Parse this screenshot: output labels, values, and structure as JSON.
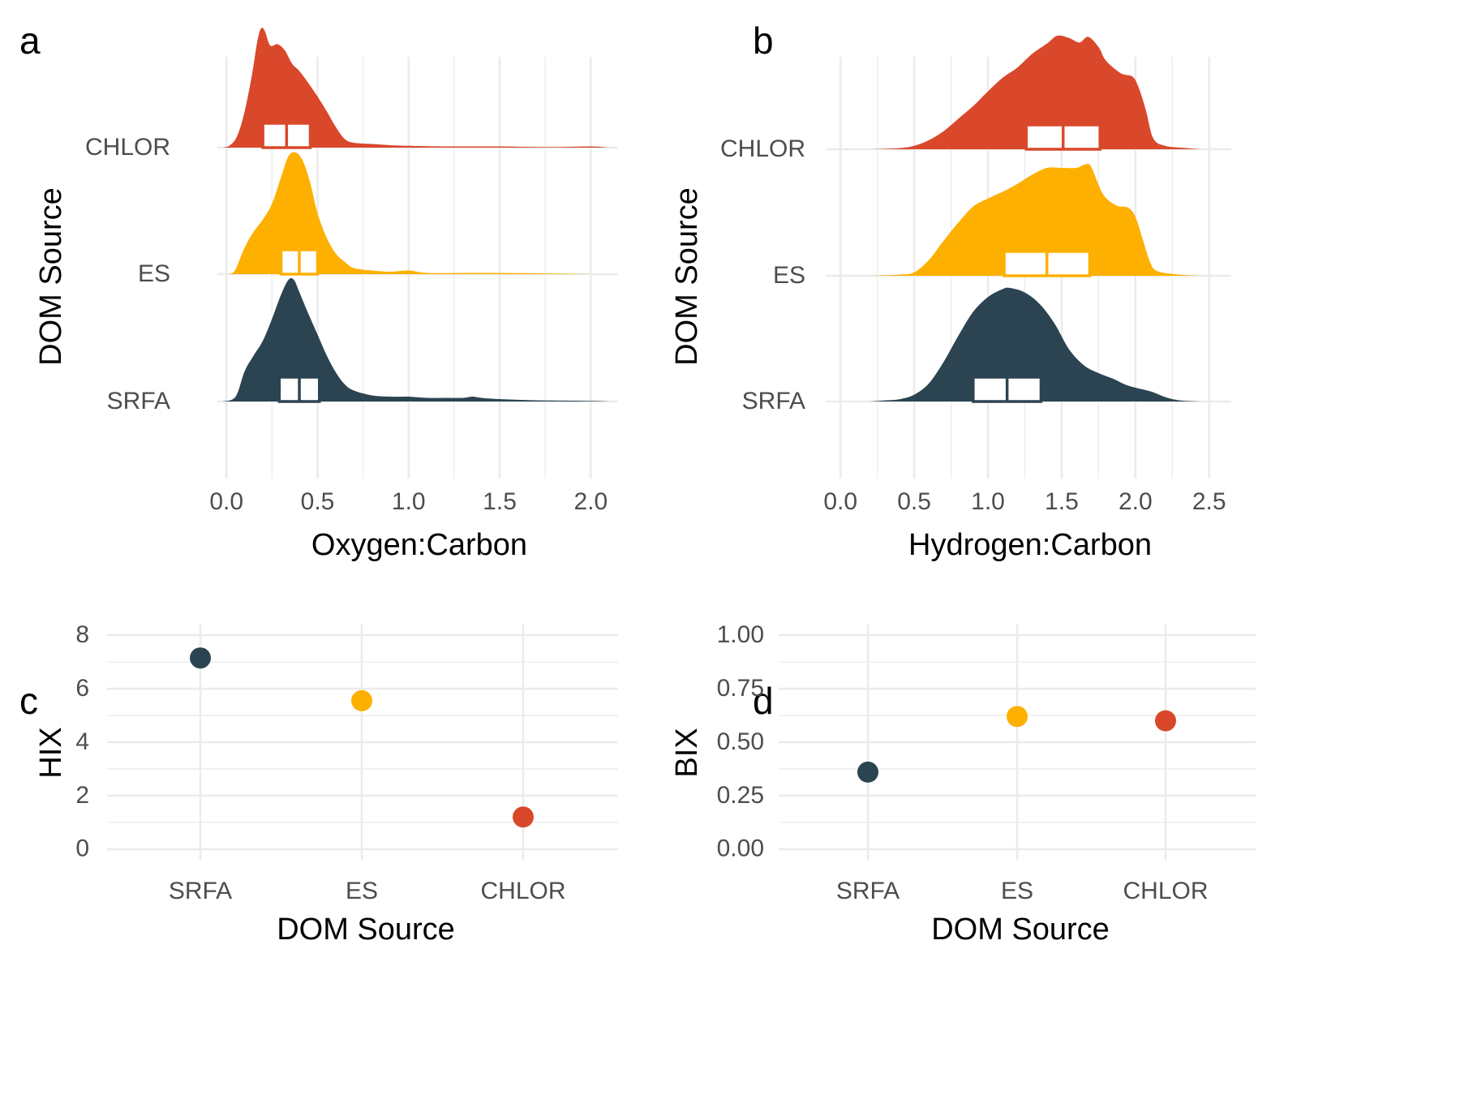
{
  "colors": {
    "SRFA": "#2c4452",
    "ES": "#fdb000",
    "CHLOR": "#d9482b"
  },
  "chart_data": [
    {
      "panel": "a",
      "type": "area",
      "subtype": "ridgeline",
      "xlabel": "Oxygen:Carbon",
      "ylabel": "DOM Source",
      "xlim": [
        -0.05,
        2.15
      ],
      "x_ticks": [
        0.0,
        0.5,
        1.0,
        1.5,
        2.0
      ],
      "x_tick_labels": [
        "0.0",
        "0.5",
        "1.0",
        "1.5",
        "2.0"
      ],
      "categories": [
        "SRFA",
        "ES",
        "CHLOR"
      ],
      "grid": true,
      "series": [
        {
          "name": "SRFA",
          "density": [
            [
              -0.02,
              0
            ],
            [
              0.05,
              0.04
            ],
            [
              0.1,
              0.25
            ],
            [
              0.15,
              0.38
            ],
            [
              0.2,
              0.5
            ],
            [
              0.25,
              0.68
            ],
            [
              0.3,
              0.88
            ],
            [
              0.34,
              1.0
            ],
            [
              0.37,
              1.0
            ],
            [
              0.4,
              0.9
            ],
            [
              0.45,
              0.72
            ],
            [
              0.5,
              0.55
            ],
            [
              0.55,
              0.38
            ],
            [
              0.6,
              0.24
            ],
            [
              0.65,
              0.14
            ],
            [
              0.7,
              0.09
            ],
            [
              0.8,
              0.05
            ],
            [
              0.9,
              0.04
            ],
            [
              1.0,
              0.04
            ],
            [
              1.1,
              0.03
            ],
            [
              1.2,
              0.03
            ],
            [
              1.3,
              0.03
            ],
            [
              1.35,
              0.04
            ],
            [
              1.4,
              0.03
            ],
            [
              1.5,
              0.02
            ],
            [
              1.7,
              0.01
            ],
            [
              2.0,
              0.005
            ],
            [
              2.1,
              0
            ]
          ],
          "box": {
            "q1": 0.29,
            "median": 0.4,
            "q3": 0.51
          }
        },
        {
          "name": "ES",
          "density": [
            [
              0.02,
              0
            ],
            [
              0.05,
              0.04
            ],
            [
              0.1,
              0.22
            ],
            [
              0.15,
              0.35
            ],
            [
              0.2,
              0.45
            ],
            [
              0.25,
              0.58
            ],
            [
              0.3,
              0.8
            ],
            [
              0.34,
              0.97
            ],
            [
              0.38,
              1.0
            ],
            [
              0.42,
              0.93
            ],
            [
              0.46,
              0.75
            ],
            [
              0.5,
              0.5
            ],
            [
              0.55,
              0.3
            ],
            [
              0.6,
              0.17
            ],
            [
              0.65,
              0.1
            ],
            [
              0.7,
              0.05
            ],
            [
              0.8,
              0.03
            ],
            [
              0.9,
              0.02
            ],
            [
              1.0,
              0.03
            ],
            [
              1.1,
              0.01
            ],
            [
              1.3,
              0.01
            ],
            [
              1.5,
              0.01
            ],
            [
              1.8,
              0.005
            ],
            [
              2.0,
              0
            ]
          ],
          "box": {
            "q1": 0.3,
            "median": 0.4,
            "q3": 0.5
          }
        },
        {
          "name": "CHLOR",
          "density": [
            [
              -0.02,
              0
            ],
            [
              0.02,
              0.02
            ],
            [
              0.06,
              0.1
            ],
            [
              0.1,
              0.3
            ],
            [
              0.14,
              0.6
            ],
            [
              0.17,
              0.88
            ],
            [
              0.19,
              0.98
            ],
            [
              0.21,
              0.96
            ],
            [
              0.24,
              0.84
            ],
            [
              0.28,
              0.85
            ],
            [
              0.32,
              0.8
            ],
            [
              0.36,
              0.69
            ],
            [
              0.4,
              0.63
            ],
            [
              0.45,
              0.53
            ],
            [
              0.5,
              0.42
            ],
            [
              0.55,
              0.3
            ],
            [
              0.6,
              0.17
            ],
            [
              0.65,
              0.07
            ],
            [
              0.7,
              0.04
            ],
            [
              0.8,
              0.03
            ],
            [
              0.9,
              0.02
            ],
            [
              1.0,
              0.015
            ],
            [
              1.2,
              0.01
            ],
            [
              1.5,
              0.01
            ],
            [
              1.8,
              0.005
            ],
            [
              2.0,
              0.01
            ],
            [
              2.1,
              0
            ]
          ],
          "box": {
            "q1": 0.2,
            "median": 0.33,
            "q3": 0.46
          }
        }
      ]
    },
    {
      "panel": "b",
      "type": "area",
      "subtype": "ridgeline",
      "xlabel": "Hydrogen:Carbon",
      "ylabel": "DOM Source",
      "xlim": [
        -0.1,
        2.65
      ],
      "x_ticks": [
        0.0,
        0.5,
        1.0,
        1.5,
        2.0,
        2.5
      ],
      "x_tick_labels": [
        "0.0",
        "0.5",
        "1.0",
        "1.5",
        "2.0",
        "2.5"
      ],
      "categories": [
        "SRFA",
        "ES",
        "CHLOR"
      ],
      "grid": true,
      "series": [
        {
          "name": "SRFA",
          "density": [
            [
              0.2,
              0
            ],
            [
              0.3,
              0.01
            ],
            [
              0.4,
              0.02
            ],
            [
              0.5,
              0.06
            ],
            [
              0.6,
              0.16
            ],
            [
              0.7,
              0.35
            ],
            [
              0.8,
              0.58
            ],
            [
              0.9,
              0.79
            ],
            [
              1.0,
              0.92
            ],
            [
              1.1,
              0.99
            ],
            [
              1.15,
              1.0
            ],
            [
              1.25,
              0.96
            ],
            [
              1.35,
              0.86
            ],
            [
              1.45,
              0.69
            ],
            [
              1.55,
              0.46
            ],
            [
              1.65,
              0.32
            ],
            [
              1.75,
              0.25
            ],
            [
              1.85,
              0.2
            ],
            [
              1.95,
              0.14
            ],
            [
              2.1,
              0.09
            ],
            [
              2.2,
              0.04
            ],
            [
              2.3,
              0.01
            ],
            [
              2.45,
              0
            ]
          ],
          "box": {
            "q1": 0.9,
            "median": 1.13,
            "q3": 1.36
          }
        },
        {
          "name": "ES",
          "density": [
            [
              0.2,
              0
            ],
            [
              0.4,
              0.01
            ],
            [
              0.5,
              0.03
            ],
            [
              0.6,
              0.14
            ],
            [
              0.7,
              0.31
            ],
            [
              0.8,
              0.47
            ],
            [
              0.9,
              0.61
            ],
            [
              1.0,
              0.68
            ],
            [
              1.1,
              0.74
            ],
            [
              1.2,
              0.81
            ],
            [
              1.3,
              0.89
            ],
            [
              1.4,
              0.95
            ],
            [
              1.5,
              0.95
            ],
            [
              1.6,
              0.95
            ],
            [
              1.66,
              0.98
            ],
            [
              1.7,
              0.96
            ],
            [
              1.78,
              0.72
            ],
            [
              1.87,
              0.62
            ],
            [
              1.95,
              0.6
            ],
            [
              2.0,
              0.52
            ],
            [
              2.05,
              0.32
            ],
            [
              2.1,
              0.12
            ],
            [
              2.15,
              0.04
            ],
            [
              2.3,
              0.01
            ],
            [
              2.45,
              0
            ]
          ],
          "box": {
            "q1": 1.11,
            "median": 1.4,
            "q3": 1.69
          }
        },
        {
          "name": "CHLOR",
          "density": [
            [
              0.2,
              0
            ],
            [
              0.4,
              0.01
            ],
            [
              0.5,
              0.03
            ],
            [
              0.6,
              0.08
            ],
            [
              0.7,
              0.16
            ],
            [
              0.8,
              0.27
            ],
            [
              0.9,
              0.38
            ],
            [
              1.0,
              0.51
            ],
            [
              1.1,
              0.63
            ],
            [
              1.2,
              0.72
            ],
            [
              1.3,
              0.84
            ],
            [
              1.4,
              0.93
            ],
            [
              1.47,
              1.0
            ],
            [
              1.55,
              0.98
            ],
            [
              1.62,
              0.94
            ],
            [
              1.68,
              0.99
            ],
            [
              1.75,
              0.9
            ],
            [
              1.8,
              0.78
            ],
            [
              1.9,
              0.67
            ],
            [
              1.98,
              0.64
            ],
            [
              2.02,
              0.55
            ],
            [
              2.07,
              0.35
            ],
            [
              2.12,
              0.1
            ],
            [
              2.2,
              0.03
            ],
            [
              2.35,
              0.01
            ],
            [
              2.45,
              0
            ]
          ],
          "box": {
            "q1": 1.26,
            "median": 1.51,
            "q3": 1.76
          }
        }
      ]
    },
    {
      "panel": "c",
      "type": "scatter",
      "xlabel": "DOM Source",
      "ylabel": "HIX",
      "categories": [
        "SRFA",
        "ES",
        "CHLOR"
      ],
      "values": [
        7.15,
        5.55,
        1.2
      ],
      "ylim": [
        -0.4,
        8.4
      ],
      "y_ticks": [
        0,
        2,
        4,
        6,
        8
      ],
      "y_tick_labels": [
        "0",
        "2",
        "4",
        "6",
        "8"
      ],
      "grid": true
    },
    {
      "panel": "d",
      "type": "scatter",
      "xlabel": "DOM Source",
      "ylabel": "BIX",
      "categories": [
        "SRFA",
        "ES",
        "CHLOR"
      ],
      "values": [
        0.36,
        0.62,
        0.6
      ],
      "ylim": [
        -0.05,
        1.05
      ],
      "y_ticks": [
        0,
        0.25,
        0.5,
        0.75,
        1.0
      ],
      "y_tick_labels": [
        "0.00",
        "0.25",
        "0.50",
        "0.75",
        "1.00"
      ],
      "grid": true
    }
  ]
}
